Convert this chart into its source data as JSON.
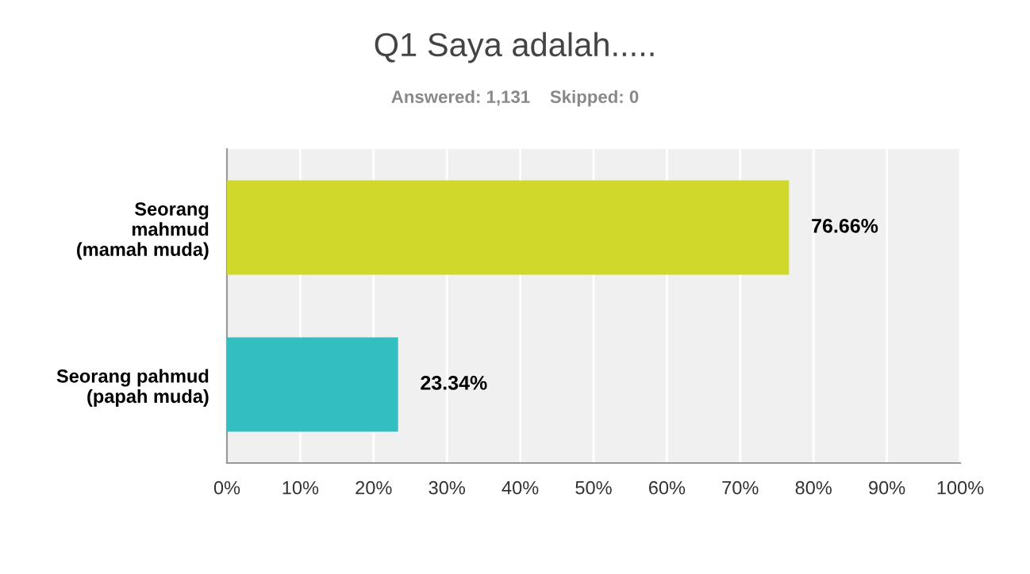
{
  "chart_data": {
    "type": "bar",
    "orientation": "horizontal",
    "title": "Q1 Saya adalah.....",
    "subtitle": "Answered: 1,131    Skipped: 0",
    "categories": [
      "Seorang\nmahmud\n(mamah muda)",
      "Seorang pahmud\n(papah muda)"
    ],
    "values": [
      76.66,
      23.34
    ],
    "colors": [
      "#d0d82a",
      "#33bfc1"
    ],
    "value_labels": [
      "76.66%",
      "23.34%"
    ],
    "xlim": [
      0,
      100
    ],
    "xticks": [
      {
        "value": 0,
        "label": "0%"
      },
      {
        "value": 10,
        "label": "10%"
      },
      {
        "value": 20,
        "label": "20%"
      },
      {
        "value": 30,
        "label": "30%"
      },
      {
        "value": 40,
        "label": "40%"
      },
      {
        "value": 50,
        "label": "50%"
      },
      {
        "value": 60,
        "label": "60%"
      },
      {
        "value": 70,
        "label": "70%"
      },
      {
        "value": 80,
        "label": "80%"
      },
      {
        "value": 90,
        "label": "90%"
      },
      {
        "value": 100,
        "label": "100%"
      }
    ],
    "grid": "x"
  }
}
